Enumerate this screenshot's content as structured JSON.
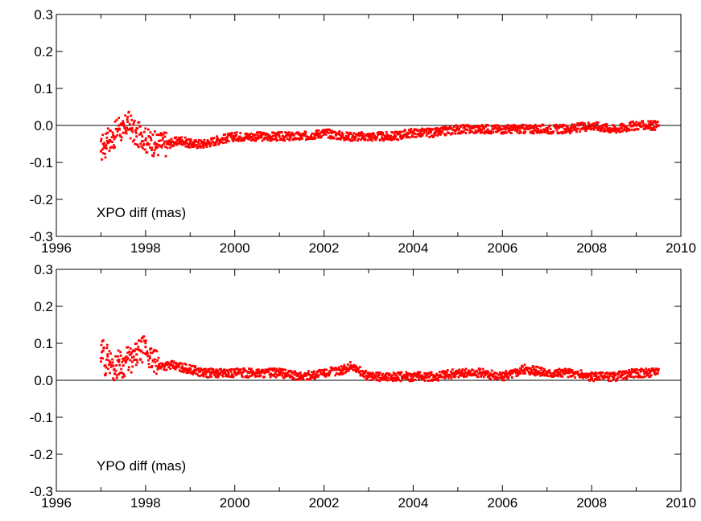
{
  "chart_data": [
    {
      "type": "scatter",
      "label": "XPO diff (mas)",
      "xlim": [
        1996,
        2010
      ],
      "ylim": [
        -0.3,
        0.3
      ],
      "x_ticks": [
        "1996",
        "1998",
        "2000",
        "2002",
        "2004",
        "2006",
        "2008",
        "2010"
      ],
      "y_ticks": [
        "0.3",
        "0.2",
        "0.1",
        "0.0",
        "-0.1",
        "-0.2",
        "-0.3"
      ],
      "zero_line": true,
      "grid": false,
      "marker_color": "#ff0000",
      "series": [
        {
          "x": [
            1997.0,
            1997.05,
            1997.1,
            1997.15,
            1997.2,
            1997.3,
            1997.4,
            1997.5,
            1997.6,
            1997.7,
            1997.8,
            1997.9,
            1998.0,
            1998.2,
            1998.5,
            1998.8,
            1999.0,
            1999.3,
            1999.6,
            2000.0,
            2000.3,
            2000.6,
            2001.0,
            2001.5,
            2002.0,
            2002.5,
            2003.0,
            2003.5,
            2004.0,
            2004.5,
            2005.0,
            2005.5,
            2006.0,
            2006.5,
            2007.0,
            2007.5,
            2008.0,
            2008.5,
            2009.0,
            2009.3,
            2009.5
          ],
          "y": [
            -0.07,
            -0.05,
            -0.06,
            -0.02,
            -0.04,
            -0.03,
            0.0,
            -0.02,
            0.01,
            -0.01,
            -0.03,
            -0.02,
            -0.04,
            -0.05,
            -0.05,
            -0.04,
            -0.05,
            -0.05,
            -0.04,
            -0.03,
            -0.03,
            -0.03,
            -0.03,
            -0.03,
            -0.02,
            -0.03,
            -0.03,
            -0.03,
            -0.02,
            -0.02,
            -0.01,
            -0.01,
            -0.01,
            -0.01,
            -0.01,
            -0.01,
            0.0,
            -0.01,
            0.0,
            0.0,
            0.0
          ]
        }
      ]
    },
    {
      "type": "scatter",
      "label": "YPO diff (mas)",
      "xlim": [
        1996,
        2010
      ],
      "ylim": [
        -0.3,
        0.3
      ],
      "x_ticks": [
        "1996",
        "1998",
        "2000",
        "2002",
        "2004",
        "2006",
        "2008",
        "2010"
      ],
      "y_ticks": [
        "0.3",
        "0.2",
        "0.1",
        "0.0",
        "-0.1",
        "-0.2",
        "-0.3"
      ],
      "zero_line": true,
      "grid": false,
      "marker_color": "#ff0000",
      "series": [
        {
          "x": [
            1997.0,
            1997.05,
            1997.1,
            1997.15,
            1997.2,
            1997.3,
            1997.4,
            1997.5,
            1997.6,
            1997.7,
            1997.8,
            1997.9,
            1998.0,
            1998.1,
            1998.3,
            1998.6,
            1999.0,
            1999.3,
            1999.6,
            2000.0,
            2000.5,
            2001.0,
            2001.5,
            2002.0,
            2002.5,
            2002.6,
            2003.0,
            2003.5,
            2004.0,
            2004.5,
            2005.0,
            2005.5,
            2006.0,
            2006.5,
            2007.0,
            2007.5,
            2008.0,
            2008.5,
            2009.0,
            2009.3,
            2009.5
          ],
          "y": [
            0.06,
            0.08,
            0.04,
            0.07,
            0.05,
            0.03,
            0.05,
            0.04,
            0.06,
            0.05,
            0.07,
            0.08,
            0.09,
            0.06,
            0.04,
            0.04,
            0.03,
            0.02,
            0.02,
            0.02,
            0.02,
            0.02,
            0.01,
            0.02,
            0.03,
            0.04,
            0.01,
            0.01,
            0.01,
            0.01,
            0.02,
            0.02,
            0.01,
            0.03,
            0.02,
            0.02,
            0.01,
            0.01,
            0.02,
            0.02,
            0.03
          ]
        }
      ]
    }
  ]
}
